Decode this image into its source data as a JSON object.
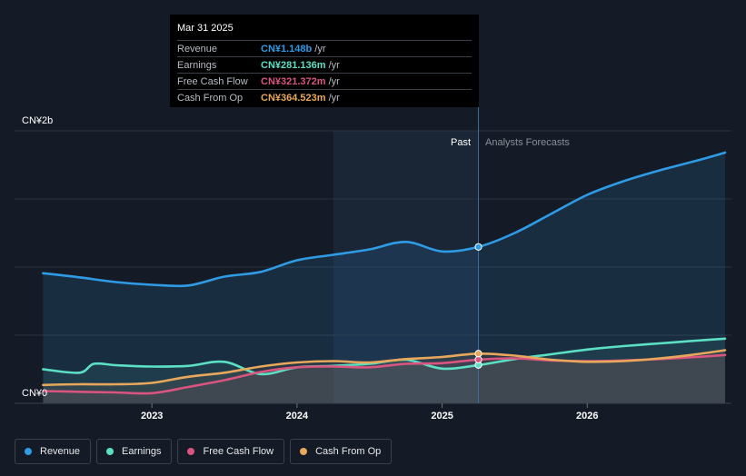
{
  "tooltip": {
    "date": "Mar 31 2025",
    "rows": [
      {
        "label": "Revenue",
        "value": "CN¥1.148b",
        "unit": "/yr",
        "color": "#2f9be5"
      },
      {
        "label": "Earnings",
        "value": "CN¥281.136m",
        "unit": "/yr",
        "color": "#5ce0c4"
      },
      {
        "label": "Free Cash Flow",
        "value": "CN¥321.372m",
        "unit": "/yr",
        "color": "#d9547f"
      },
      {
        "label": "Cash From Op",
        "value": "CN¥364.523m",
        "unit": "/yr",
        "color": "#e8a85c"
      }
    ]
  },
  "legend": [
    {
      "label": "Revenue",
      "color": "#2f9be5"
    },
    {
      "label": "Earnings",
      "color": "#5ce0c4"
    },
    {
      "label": "Free Cash Flow",
      "color": "#d9547f"
    },
    {
      "label": "Cash From Op",
      "color": "#e8a85c"
    }
  ],
  "chart_data": {
    "type": "area",
    "y_unit_labels": {
      "top": "CN¥2b",
      "bottom": "CN¥0"
    },
    "ylim": [
      0,
      2000
    ],
    "xlim": [
      2022.2,
      2026.95
    ],
    "x_ticks": [
      {
        "value": 2023.0,
        "label": "2023"
      },
      {
        "value": 2024.0,
        "label": "2024"
      },
      {
        "value": 2025.0,
        "label": "2025"
      },
      {
        "value": 2026.0,
        "label": "2026"
      }
    ],
    "divider_x": 2025.25,
    "shaded_from_x": 2024.25,
    "past_label": "Past",
    "forecast_label": "Analysts Forecasts",
    "grid": true,
    "series": [
      {
        "name": "Revenue",
        "color": "#2f9be5",
        "unit": "CN¥m",
        "points": [
          [
            2022.25,
            955
          ],
          [
            2022.5,
            925
          ],
          [
            2022.75,
            890
          ],
          [
            2023.0,
            870
          ],
          [
            2023.25,
            865
          ],
          [
            2023.5,
            930
          ],
          [
            2023.75,
            965
          ],
          [
            2024.0,
            1050
          ],
          [
            2024.25,
            1090
          ],
          [
            2024.5,
            1130
          ],
          [
            2024.75,
            1185
          ],
          [
            2025.0,
            1115
          ],
          [
            2025.25,
            1148
          ],
          [
            2025.5,
            1250
          ],
          [
            2025.75,
            1390
          ],
          [
            2026.0,
            1530
          ],
          [
            2026.25,
            1630
          ],
          [
            2026.5,
            1710
          ],
          [
            2026.75,
            1780
          ],
          [
            2026.95,
            1840
          ]
        ],
        "marker_x": 2025.25
      },
      {
        "name": "Earnings",
        "color": "#5ce0c4",
        "unit": "CN¥m",
        "points": [
          [
            2022.25,
            250
          ],
          [
            2022.5,
            225
          ],
          [
            2022.6,
            290
          ],
          [
            2022.75,
            280
          ],
          [
            2023.0,
            270
          ],
          [
            2023.25,
            275
          ],
          [
            2023.5,
            305
          ],
          [
            2023.75,
            215
          ],
          [
            2024.0,
            265
          ],
          [
            2024.25,
            275
          ],
          [
            2024.5,
            290
          ],
          [
            2024.75,
            320
          ],
          [
            2025.0,
            255
          ],
          [
            2025.25,
            281
          ],
          [
            2025.5,
            325
          ],
          [
            2025.75,
            360
          ],
          [
            2026.0,
            395
          ],
          [
            2026.25,
            420
          ],
          [
            2026.5,
            440
          ],
          [
            2026.75,
            460
          ],
          [
            2026.95,
            475
          ]
        ],
        "marker_x": 2025.25
      },
      {
        "name": "Free Cash Flow",
        "color": "#d9547f",
        "unit": "CN¥m",
        "points": [
          [
            2022.25,
            90
          ],
          [
            2022.5,
            85
          ],
          [
            2022.75,
            80
          ],
          [
            2023.0,
            75
          ],
          [
            2023.25,
            120
          ],
          [
            2023.5,
            170
          ],
          [
            2023.75,
            230
          ],
          [
            2024.0,
            265
          ],
          [
            2024.25,
            270
          ],
          [
            2024.5,
            265
          ],
          [
            2024.75,
            290
          ],
          [
            2025.0,
            295
          ],
          [
            2025.25,
            321
          ],
          [
            2025.5,
            330
          ],
          [
            2025.75,
            315
          ],
          [
            2026.0,
            310
          ],
          [
            2026.25,
            315
          ],
          [
            2026.5,
            325
          ],
          [
            2026.75,
            340
          ],
          [
            2026.95,
            355
          ]
        ],
        "marker_x": 2025.25
      },
      {
        "name": "Cash From Op",
        "color": "#e8a85c",
        "unit": "CN¥m",
        "points": [
          [
            2022.25,
            135
          ],
          [
            2022.5,
            140
          ],
          [
            2022.75,
            140
          ],
          [
            2023.0,
            150
          ],
          [
            2023.25,
            195
          ],
          [
            2023.5,
            225
          ],
          [
            2023.75,
            270
          ],
          [
            2024.0,
            300
          ],
          [
            2024.25,
            310
          ],
          [
            2024.5,
            300
          ],
          [
            2024.75,
            325
          ],
          [
            2025.0,
            340
          ],
          [
            2025.25,
            365
          ],
          [
            2025.5,
            350
          ],
          [
            2025.75,
            320
          ],
          [
            2026.0,
            305
          ],
          [
            2026.25,
            310
          ],
          [
            2026.5,
            330
          ],
          [
            2026.75,
            360
          ],
          [
            2026.95,
            390
          ]
        ],
        "marker_x": 2025.25
      }
    ]
  }
}
